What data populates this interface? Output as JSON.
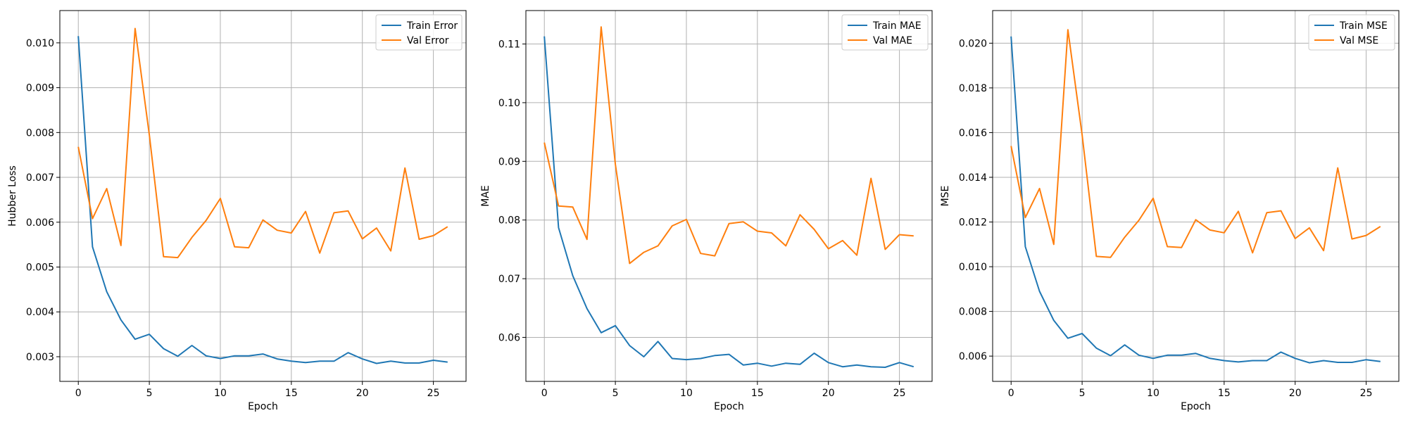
{
  "chart_data": [
    {
      "type": "line",
      "title": "",
      "xlabel": "Epoch",
      "ylabel": "Hubber Loss",
      "xlim": [
        -1.3,
        27.3
      ],
      "ylim": [
        0.00245,
        0.01072
      ],
      "x_ticks": [
        0,
        5,
        10,
        15,
        20,
        25
      ],
      "y_ticks": [
        0.003,
        0.004,
        0.005,
        0.006,
        0.007,
        0.008,
        0.009,
        0.01
      ],
      "y_tick_labels": [
        "0.003",
        "0.004",
        "0.005",
        "0.006",
        "0.007",
        "0.008",
        "0.009",
        "0.010"
      ],
      "grid": true,
      "legend_position": "top-right",
      "x": [
        0,
        1,
        2,
        3,
        4,
        5,
        6,
        7,
        8,
        9,
        10,
        11,
        12,
        13,
        14,
        15,
        16,
        17,
        18,
        19,
        20,
        21,
        22,
        23,
        24,
        25,
        26
      ],
      "series": [
        {
          "name": "Train Error",
          "color": "#1f77b4",
          "values": [
            0.01015,
            0.00545,
            0.00445,
            0.00382,
            0.00339,
            0.0035,
            0.00318,
            0.00301,
            0.00325,
            0.00302,
            0.00296,
            0.00302,
            0.00302,
            0.00306,
            0.00295,
            0.0029,
            0.00287,
            0.0029,
            0.0029,
            0.00309,
            0.00295,
            0.00285,
            0.0029,
            0.00286,
            0.00286,
            0.00292,
            0.00288
          ]
        },
        {
          "name": "Val Error",
          "color": "#ff7f0e",
          "values": [
            0.00768,
            0.00608,
            0.00675,
            0.00548,
            0.01032,
            0.00795,
            0.00523,
            0.00521,
            0.00566,
            0.00604,
            0.00653,
            0.00545,
            0.00543,
            0.00605,
            0.00582,
            0.00576,
            0.00624,
            0.00531,
            0.00621,
            0.00625,
            0.00563,
            0.00587,
            0.00536,
            0.00721,
            0.00562,
            0.0057,
            0.0059
          ]
        }
      ]
    },
    {
      "type": "line",
      "title": "",
      "xlabel": "Epoch",
      "ylabel": "MAE",
      "xlim": [
        -1.3,
        27.3
      ],
      "ylim": [
        0.0525,
        0.1157
      ],
      "x_ticks": [
        0,
        5,
        10,
        15,
        20,
        25
      ],
      "y_ticks": [
        0.06,
        0.07,
        0.08,
        0.09,
        0.1,
        0.11
      ],
      "y_tick_labels": [
        "0.06",
        "0.07",
        "0.08",
        "0.09",
        "0.10",
        "0.11"
      ],
      "grid": true,
      "legend_position": "top-right",
      "x": [
        0,
        1,
        2,
        3,
        4,
        5,
        6,
        7,
        8,
        9,
        10,
        11,
        12,
        13,
        14,
        15,
        16,
        17,
        18,
        19,
        20,
        21,
        22,
        23,
        24,
        25,
        26
      ],
      "series": [
        {
          "name": "Train MAE",
          "color": "#1f77b4",
          "values": [
            0.1113,
            0.0787,
            0.0705,
            0.0649,
            0.0608,
            0.062,
            0.0586,
            0.0567,
            0.0593,
            0.0564,
            0.0562,
            0.0564,
            0.0569,
            0.0571,
            0.0553,
            0.0556,
            0.0551,
            0.0556,
            0.0554,
            0.0573,
            0.0557,
            0.055,
            0.0553,
            0.055,
            0.0549,
            0.0557,
            0.055
          ]
        },
        {
          "name": "Val MAE",
          "color": "#ff7f0e",
          "values": [
            0.0932,
            0.0824,
            0.0822,
            0.0767,
            0.1129,
            0.0895,
            0.0726,
            0.0745,
            0.0756,
            0.079,
            0.0801,
            0.0743,
            0.0739,
            0.0794,
            0.0797,
            0.0781,
            0.0778,
            0.0756,
            0.0809,
            0.0784,
            0.0751,
            0.0765,
            0.074,
            0.0871,
            0.075,
            0.0775,
            0.0773
          ]
        }
      ]
    },
    {
      "type": "line",
      "title": "",
      "xlabel": "Epoch",
      "ylabel": "MSE",
      "xlim": [
        -1.3,
        27.3
      ],
      "ylim": [
        0.00487,
        0.02146
      ],
      "x_ticks": [
        0,
        5,
        10,
        15,
        20,
        25
      ],
      "y_ticks": [
        0.006,
        0.008,
        0.01,
        0.012,
        0.014,
        0.016,
        0.018,
        0.02
      ],
      "y_tick_labels": [
        "0.006",
        "0.008",
        "0.010",
        "0.012",
        "0.014",
        "0.016",
        "0.018",
        "0.020"
      ],
      "grid": true,
      "legend_position": "top-right",
      "x": [
        0,
        1,
        2,
        3,
        4,
        5,
        6,
        7,
        8,
        9,
        10,
        11,
        12,
        13,
        14,
        15,
        16,
        17,
        18,
        19,
        20,
        21,
        22,
        23,
        24,
        25,
        26
      ],
      "series": [
        {
          "name": "Train MSE",
          "color": "#1f77b4",
          "values": [
            0.0203,
            0.0109,
            0.0089,
            0.0076,
            0.0068,
            0.00701,
            0.00636,
            0.00602,
            0.0065,
            0.00604,
            0.0059,
            0.00604,
            0.00604,
            0.00612,
            0.0059,
            0.0058,
            0.00574,
            0.0058,
            0.0058,
            0.00618,
            0.0059,
            0.0057,
            0.0058,
            0.00572,
            0.00572,
            0.00584,
            0.00576
          ]
        },
        {
          "name": "Val MSE",
          "color": "#ff7f0e",
          "values": [
            0.0154,
            0.0122,
            0.0135,
            0.011,
            0.0206,
            0.0159,
            0.01046,
            0.01042,
            0.01132,
            0.01208,
            0.01306,
            0.0109,
            0.01086,
            0.0121,
            0.01164,
            0.01152,
            0.01248,
            0.01062,
            0.01242,
            0.0125,
            0.01126,
            0.01174,
            0.01072,
            0.01442,
            0.01124,
            0.0114,
            0.0118
          ]
        }
      ]
    }
  ]
}
